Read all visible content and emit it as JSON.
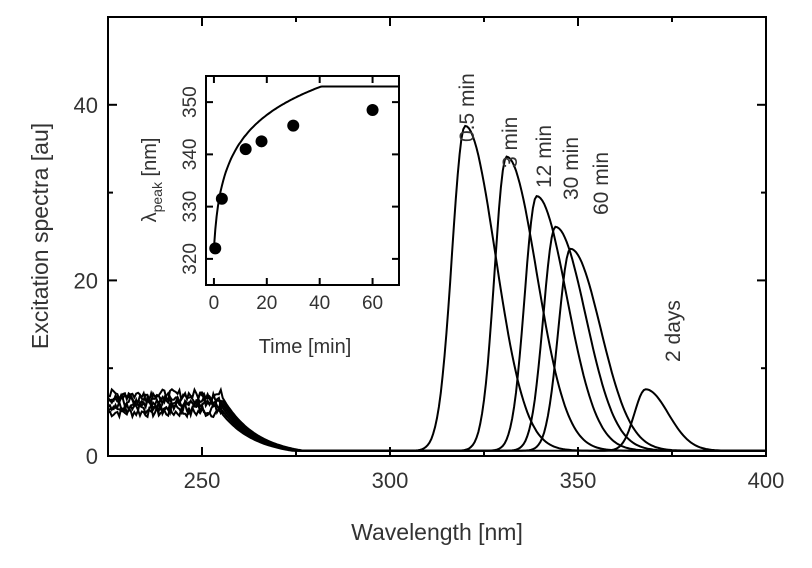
{
  "chart_data": [
    {
      "type": "line",
      "xlabel": "Wavelength [nm]",
      "ylabel": "Excitation spectra [au]",
      "xlim": [
        225,
        400
      ],
      "ylim": [
        0,
        50
      ],
      "xticks": [
        250,
        300,
        350,
        400
      ],
      "yticks": [
        0,
        20,
        40
      ],
      "grid": false,
      "series": [
        {
          "name": "0.5 min",
          "peak_x": 320,
          "peak_y": 37,
          "width_left": 3.5,
          "width_right": 8
        },
        {
          "name": "3 min",
          "peak_x": 331,
          "peak_y": 33.5,
          "width_left": 3.2,
          "width_right": 8
        },
        {
          "name": "12 min",
          "peak_x": 339,
          "peak_y": 29,
          "width_left": 3.2,
          "width_right": 8
        },
        {
          "name": "30 min",
          "peak_x": 344,
          "peak_y": 25.5,
          "width_left": 3.2,
          "width_right": 8
        },
        {
          "name": "60 min",
          "peak_x": 348,
          "peak_y": 23,
          "width_left": 3.2,
          "width_right": 8
        },
        {
          "name": "2 days",
          "peak_x": 368,
          "peak_y": 7,
          "width_left": 3,
          "width_right": 6
        }
      ],
      "baseline_region": {
        "x_end": 255,
        "level_min": 5,
        "level_max": 7
      }
    },
    {
      "type": "scatter",
      "xlabel": "Time [min]",
      "ylabel_symbol": "λ",
      "ylabel_sub": "peak",
      "ylabel_unit": " [nm]",
      "xlim": [
        -3,
        70
      ],
      "ylim": [
        315,
        355
      ],
      "xticks": [
        0,
        20,
        40,
        60
      ],
      "yticks": [
        320,
        330,
        340,
        350
      ],
      "x": [
        0.5,
        3,
        12,
        18,
        30,
        60
      ],
      "y": [
        322,
        331.5,
        341,
        342.5,
        345.5,
        348.5
      ]
    }
  ],
  "annotations": [
    "0.5 min",
    "3 min",
    "12 min",
    "30 min",
    "60 min",
    "2 days"
  ]
}
